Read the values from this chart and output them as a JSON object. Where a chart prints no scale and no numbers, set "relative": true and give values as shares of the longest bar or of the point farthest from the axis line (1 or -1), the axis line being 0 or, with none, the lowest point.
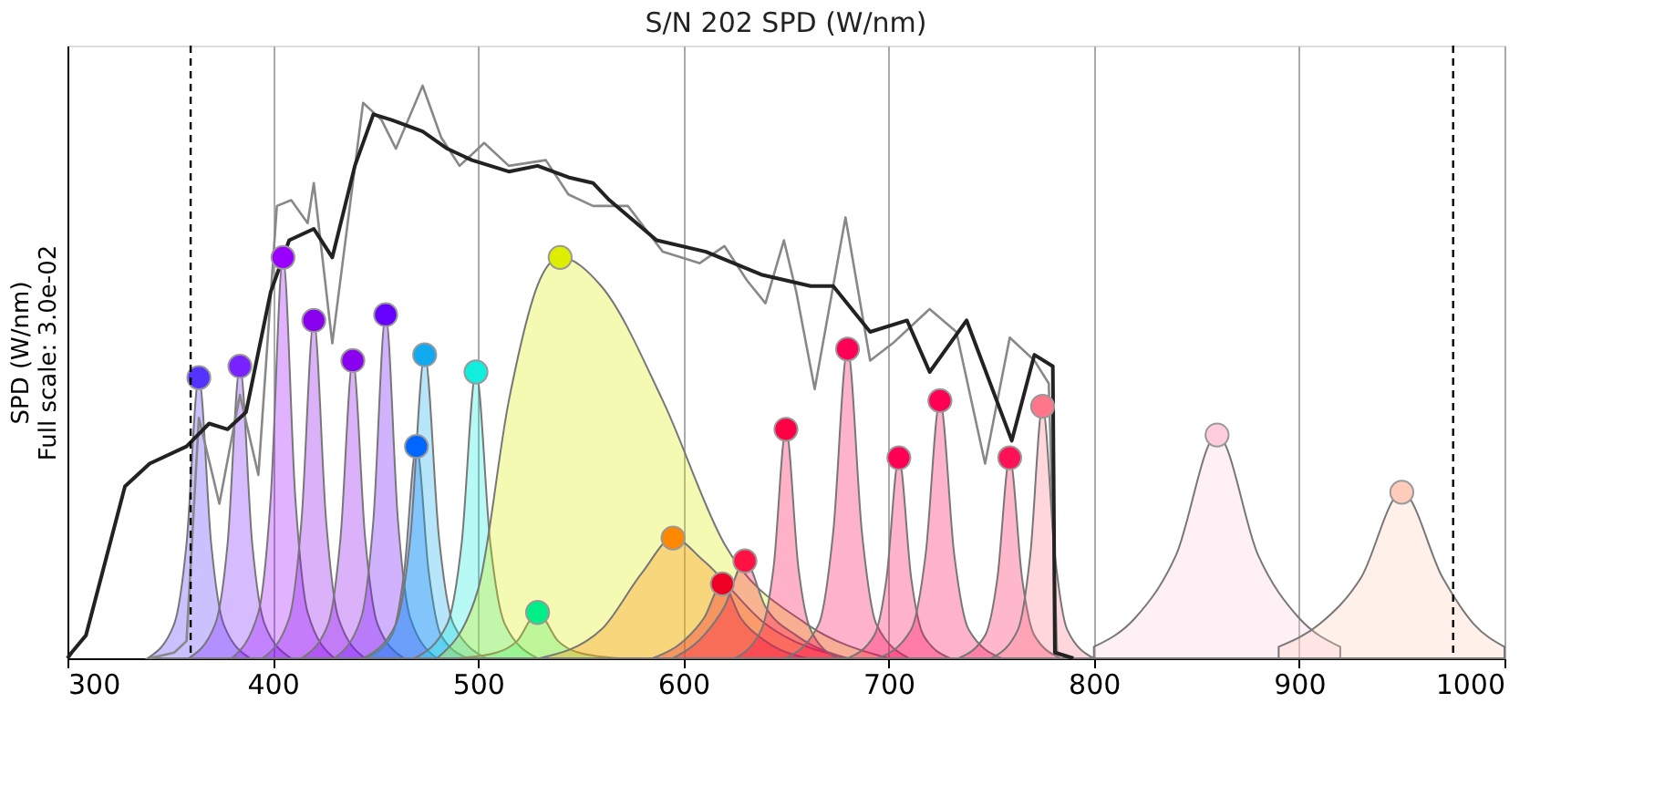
{
  "chart_data": {
    "type": "area",
    "title": "S/N 202 SPD (W/nm)",
    "ylabel": "SPD (W/nm)\nFull scale: 3.0e-02",
    "relative": true,
    "xlim": [
      300,
      1000
    ],
    "xticks": [
      300,
      400,
      500,
      600,
      700,
      800,
      900,
      1000
    ],
    "grid": "x",
    "ref_lines": [
      {
        "axis": "x",
        "value": 360,
        "color": "#000000",
        "line_style": "dashed"
      },
      {
        "axis": "x",
        "value": 975,
        "color": "#000000",
        "line_style": "dashed"
      }
    ],
    "series": [
      {
        "color": "#5533ff",
        "x": [
          339,
          352,
          358,
          364,
          370,
          376,
          389
        ],
        "values": [
          0,
          0.06,
          0.2,
          0.49,
          0.2,
          0.06,
          0
        ]
      },
      {
        "color": "#7722ff",
        "x": [
          359,
          372,
          378,
          384,
          390,
          396,
          409
        ],
        "values": [
          0,
          0.06,
          0.2,
          0.51,
          0.2,
          0.06,
          0
        ]
      },
      {
        "color": "#9900ff",
        "x": [
          380,
          393,
          399,
          405,
          411,
          417,
          430
        ],
        "values": [
          0,
          0.08,
          0.28,
          0.7,
          0.28,
          0.08,
          0
        ]
      },
      {
        "color": "#8800ee",
        "x": [
          395,
          408,
          414,
          420,
          426,
          432,
          445
        ],
        "values": [
          0,
          0.07,
          0.24,
          0.59,
          0.24,
          0.07,
          0
        ]
      },
      {
        "color": "#8800ee",
        "x": [
          414,
          427,
          433,
          439,
          445,
          451,
          464
        ],
        "values": [
          0,
          0.06,
          0.21,
          0.52,
          0.21,
          0.06,
          0
        ]
      },
      {
        "color": "#6600ff",
        "x": [
          430,
          443,
          449,
          455,
          461,
          467,
          480
        ],
        "values": [
          0,
          0.07,
          0.24,
          0.6,
          0.24,
          0.07,
          0
        ]
      },
      {
        "color": "#0066ff",
        "x": [
          445,
          458,
          464,
          470,
          476,
          482,
          495
        ],
        "values": [
          0,
          0.04,
          0.15,
          0.37,
          0.15,
          0.04,
          0
        ]
      },
      {
        "color": "#11aaee",
        "x": [
          444,
          460,
          467,
          474,
          481,
          488,
          504
        ],
        "values": [
          0,
          0.06,
          0.21,
          0.53,
          0.21,
          0.06,
          0
        ]
      },
      {
        "color": "#11eedd",
        "x": [
          469,
          485,
          492,
          499,
          506,
          513,
          529
        ],
        "values": [
          0,
          0.06,
          0.2,
          0.5,
          0.2,
          0.06,
          0
        ]
      },
      {
        "color": "#00ee88",
        "x": [
          489,
          509,
          519,
          529,
          539,
          549,
          569
        ],
        "values": [
          0,
          0.01,
          0.03,
          0.08,
          0.03,
          0.01,
          0
        ]
      },
      {
        "color": "#ddee00",
        "x": [
          480,
          500,
          515,
          530,
          540,
          560,
          590,
          620,
          660,
          700
        ],
        "values": [
          0,
          0.12,
          0.45,
          0.66,
          0.7,
          0.65,
          0.45,
          0.2,
          0.06,
          0
        ]
      },
      {
        "color": "#ff8800",
        "x": [
          530,
          560,
          580,
          595,
          610,
          640,
          680
        ],
        "values": [
          0,
          0.05,
          0.15,
          0.21,
          0.17,
          0.06,
          0
        ]
      },
      {
        "color": "#ee0022",
        "x": [
          585,
          600,
          610,
          619,
          628,
          640,
          660
        ],
        "values": [
          0,
          0.03,
          0.07,
          0.13,
          0.07,
          0.03,
          0
        ]
      },
      {
        "color": "#ff1144",
        "x": [
          595,
          610,
          620,
          630,
          640,
          655,
          680
        ],
        "values": [
          0,
          0.04,
          0.09,
          0.17,
          0.09,
          0.04,
          0
        ]
      },
      {
        "color": "#ff0044",
        "x": [
          625,
          638,
          644,
          650,
          656,
          662,
          675
        ],
        "values": [
          0,
          0.05,
          0.16,
          0.4,
          0.16,
          0.05,
          0
        ]
      },
      {
        "color": "#ff0055",
        "x": [
          650,
          666,
          673,
          680,
          687,
          694,
          710
        ],
        "values": [
          0,
          0.06,
          0.22,
          0.54,
          0.22,
          0.06,
          0
        ]
      },
      {
        "color": "#ff0055",
        "x": [
          680,
          693,
          699,
          705,
          711,
          717,
          730
        ],
        "values": [
          0,
          0.04,
          0.14,
          0.35,
          0.14,
          0.04,
          0
        ]
      },
      {
        "color": "#ff0055",
        "x": [
          695,
          711,
          718,
          725,
          732,
          739,
          755
        ],
        "values": [
          0,
          0.05,
          0.18,
          0.45,
          0.18,
          0.05,
          0
        ]
      },
      {
        "color": "#ff1155",
        "x": [
          734,
          747,
          753,
          759,
          765,
          771,
          784
        ],
        "values": [
          0,
          0.04,
          0.14,
          0.35,
          0.14,
          0.04,
          0
        ]
      },
      {
        "color": "#ff7788",
        "x": [
          750,
          763,
          769,
          775,
          781,
          787,
          800
        ],
        "values": [
          0,
          0.05,
          0.18,
          0.44,
          0.18,
          0.05,
          0
        ]
      },
      {
        "color": "#ffccdd",
        "x": [
          800,
          820,
          840,
          860,
          880,
          900,
          920
        ],
        "values": [
          0.02,
          0.07,
          0.18,
          0.39,
          0.18,
          0.07,
          0.02
        ]
      },
      {
        "color": "#ffccbb",
        "x": [
          890,
          910,
          930,
          950,
          970,
          985,
          1000
        ],
        "values": [
          0.02,
          0.06,
          0.14,
          0.29,
          0.14,
          0.06,
          0.02
        ]
      },
      {
        "type": "line",
        "color": "#888888",
        "x": [
          340,
          352,
          358,
          364,
          374,
          384,
          393,
          402,
          409,
          417,
          420,
          429,
          444,
          453,
          460,
          473,
          482,
          491,
          503,
          515,
          533,
          544,
          556,
          573,
          590,
          608,
          620,
          631,
          640,
          649,
          655,
          664,
          679,
          691,
          702,
          720,
          733,
          747,
          759,
          771,
          778,
          782,
          790
        ],
        "values": [
          0,
          0.01,
          0.03,
          0.42,
          0.27,
          0.46,
          0.32,
          0.79,
          0.8,
          0.76,
          0.83,
          0.55,
          0.97,
          0.94,
          0.89,
          1.0,
          0.91,
          0.86,
          0.9,
          0.86,
          0.87,
          0.81,
          0.79,
          0.79,
          0.71,
          0.69,
          0.72,
          0.66,
          0.62,
          0.73,
          0.64,
          0.47,
          0.77,
          0.52,
          0.55,
          0.61,
          0.57,
          0.34,
          0.56,
          0.52,
          0.48,
          0.01,
          0
        ]
      },
      {
        "type": "line",
        "color": "#222222",
        "x": [
          300,
          302,
          309,
          328,
          340,
          358,
          369,
          378,
          387,
          399,
          408,
          420,
          429,
          440,
          449,
          458,
          473,
          485,
          497,
          515,
          529,
          544,
          556,
          564,
          587,
          611,
          638,
          662,
          673,
          691,
          709,
          720,
          738,
          760,
          771,
          780,
          781,
          790
        ],
        "values": [
          0,
          0.01,
          0.04,
          0.3,
          0.34,
          0.37,
          0.41,
          0.4,
          0.43,
          0.64,
          0.73,
          0.75,
          0.7,
          0.86,
          0.95,
          0.94,
          0.92,
          0.89,
          0.87,
          0.85,
          0.86,
          0.84,
          0.83,
          0.8,
          0.73,
          0.71,
          0.67,
          0.65,
          0.65,
          0.57,
          0.59,
          0.5,
          0.59,
          0.38,
          0.53,
          0.51,
          0.01,
          0
        ]
      },
      {
        "type": "scatter",
        "marker": "circle",
        "x": [
          364,
          384,
          405,
          420,
          439,
          455,
          470,
          474,
          499,
          529,
          540,
          595,
          619,
          630,
          650,
          680,
          705,
          725,
          759,
          775,
          860,
          950
        ],
        "values": [
          0.49,
          0.51,
          0.7,
          0.59,
          0.52,
          0.6,
          0.37,
          0.53,
          0.5,
          0.08,
          0.7,
          0.21,
          0.13,
          0.17,
          0.4,
          0.54,
          0.35,
          0.45,
          0.35,
          0.44,
          0.39,
          0.29
        ],
        "colors": [
          "#5533ff",
          "#7722ff",
          "#9900ff",
          "#8800ee",
          "#8800ee",
          "#6600ff",
          "#0066ff",
          "#11aaee",
          "#11eedd",
          "#00ee88",
          "#ddee00",
          "#ff8800",
          "#ee0022",
          "#ff1144",
          "#ff0044",
          "#ff0055",
          "#ff0055",
          "#ff0055",
          "#ff1155",
          "#ff7788",
          "#ffccdd",
          "#ffccbb"
        ]
      }
    ]
  }
}
